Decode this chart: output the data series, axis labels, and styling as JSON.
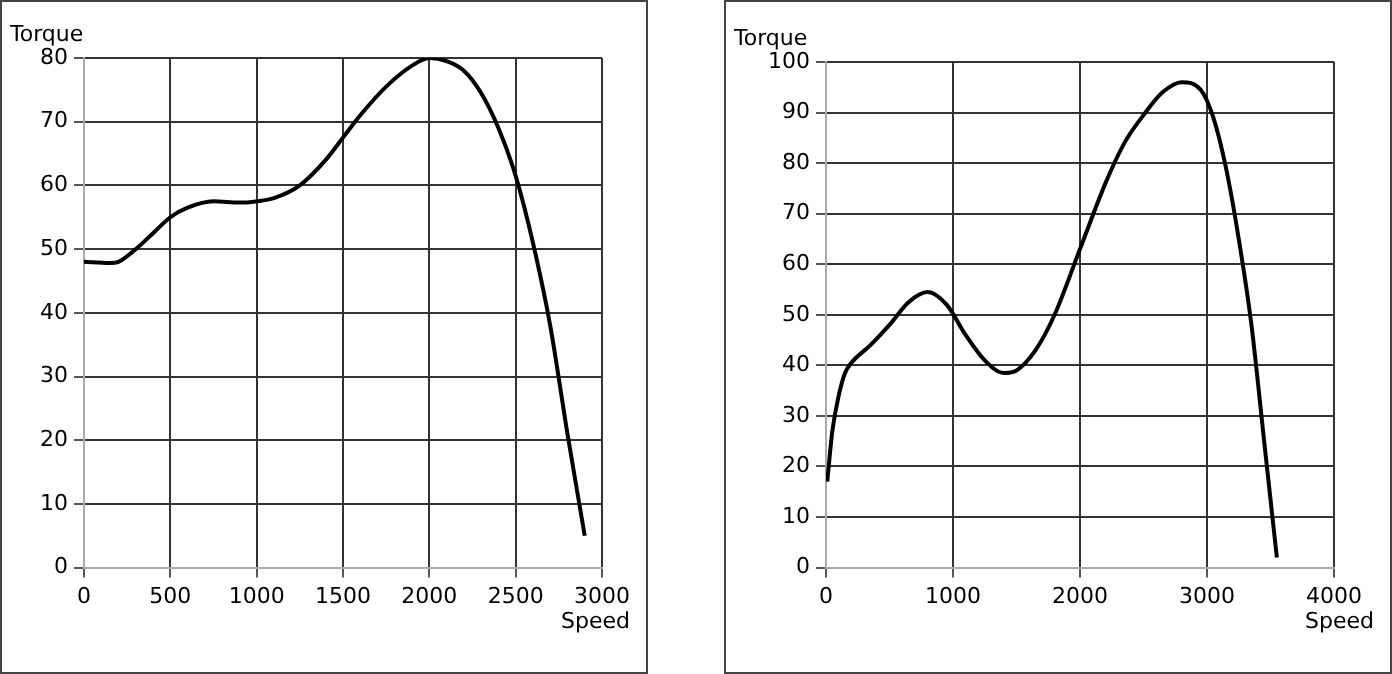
{
  "chart_data": [
    {
      "type": "line",
      "xlabel": "Speed",
      "ylabel": "Torque",
      "xlim": [
        0,
        3000
      ],
      "ylim": [
        0,
        80
      ],
      "xticks": [
        0,
        500,
        1000,
        1500,
        2000,
        2500,
        3000
      ],
      "yticks": [
        0,
        10,
        20,
        30,
        40,
        50,
        60,
        70,
        80
      ],
      "grid": true,
      "marker": "none",
      "line_style": "solid",
      "series": [
        {
          "color": "#000000",
          "x": [
            0,
            150,
            200,
            300,
            400,
            500,
            600,
            750,
            900,
            1000,
            1100,
            1250,
            1400,
            1500,
            1600,
            1750,
            1900,
            2000,
            2100,
            2200,
            2300,
            2400,
            2500,
            2600,
            2700,
            2800,
            2900
          ],
          "values": [
            48,
            47.8,
            48,
            50,
            52.5,
            55,
            56.5,
            57.5,
            57.3,
            57.5,
            58,
            60,
            64,
            67.5,
            71,
            75.5,
            78.8,
            80,
            79.5,
            78,
            74.5,
            69,
            61.5,
            51,
            38,
            21,
            5
          ]
        }
      ]
    },
    {
      "type": "line",
      "xlabel": "Speed",
      "ylabel": "Torque",
      "xlim": [
        0,
        4000
      ],
      "ylim": [
        0,
        100
      ],
      "xticks": [
        0,
        1000,
        2000,
        3000,
        4000
      ],
      "yticks": [
        0,
        10,
        20,
        30,
        40,
        50,
        60,
        70,
        80,
        90,
        100
      ],
      "grid": true,
      "marker": "none",
      "line_style": "solid",
      "series": [
        {
          "color": "#000000",
          "x": [
            10,
            50,
            100,
            150,
            200,
            350,
            500,
            650,
            800,
            950,
            1100,
            1250,
            1400,
            1500,
            1650,
            1800,
            2000,
            2200,
            2350,
            2500,
            2650,
            2800,
            2950,
            3050,
            3150,
            3250,
            3350,
            3450,
            3550
          ],
          "values": [
            17,
            27,
            34,
            38.5,
            40.5,
            44,
            48,
            52.5,
            54.5,
            52,
            46,
            41,
            38.5,
            39,
            43,
            50,
            63,
            76,
            84,
            89.5,
            94,
            96,
            94.5,
            89,
            79,
            65,
            48,
            25,
            2
          ]
        }
      ]
    }
  ]
}
